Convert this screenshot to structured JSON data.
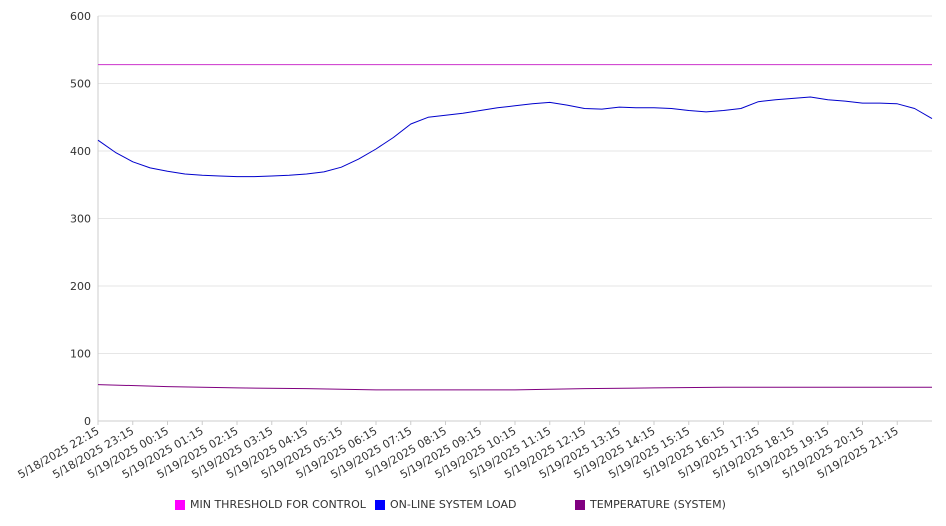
{
  "chart_data": {
    "type": "line",
    "ylim": [
      0,
      600
    ],
    "y_ticks": [
      "0",
      "100",
      "200",
      "300",
      "400",
      "500",
      "600"
    ],
    "x_tick_labels": [
      "5/18/2025 22:15",
      "5/18/2025 23:15",
      "5/19/2025 00:15",
      "5/19/2025 01:15",
      "5/19/2025 02:15",
      "5/19/2025 03:15",
      "5/19/2025 04:15",
      "5/19/2025 05:15",
      "5/19/2025 06:15",
      "5/19/2025 07:15",
      "5/19/2025 08:15",
      "5/19/2025 09:15",
      "5/19/2025 10:15",
      "5/19/2025 11:15",
      "5/19/2025 12:15",
      "5/19/2025 13:15",
      "5/19/2025 14:15",
      "5/19/2025 15:15",
      "5/19/2025 16:15",
      "5/19/2025 17:15",
      "5/19/2025 18:15",
      "5/19/2025 19:15",
      "5/19/2025 20:15",
      "5/19/2025 21:15"
    ],
    "x_start": "5/18/2025 22:15",
    "x_end": "5/19/2025 22:15",
    "grid": true,
    "legend_position": "bottom",
    "series": [
      {
        "name": "MIN THRESHOLD FOR CONTROL",
        "color": "#cc33cc",
        "x": [
          "5/18/2025 22:15",
          "5/19/2025 22:15"
        ],
        "values": [
          528,
          528
        ]
      },
      {
        "name": "ON-LINE SYSTEM LOAD",
        "color": "#0000cc",
        "x": [
          "5/18/2025 22:15",
          "5/18/2025 22:45",
          "5/18/2025 23:15",
          "5/18/2025 23:45",
          "5/19/2025 00:15",
          "5/19/2025 00:45",
          "5/19/2025 01:15",
          "5/19/2025 01:45",
          "5/19/2025 02:15",
          "5/19/2025 02:45",
          "5/19/2025 03:15",
          "5/19/2025 03:45",
          "5/19/2025 04:15",
          "5/19/2025 04:45",
          "5/19/2025 05:15",
          "5/19/2025 05:45",
          "5/19/2025 06:15",
          "5/19/2025 06:45",
          "5/19/2025 07:15",
          "5/19/2025 07:45",
          "5/19/2025 08:15",
          "5/19/2025 08:45",
          "5/19/2025 09:15",
          "5/19/2025 09:45",
          "5/19/2025 10:15",
          "5/19/2025 10:45",
          "5/19/2025 11:15",
          "5/19/2025 11:45",
          "5/19/2025 12:15",
          "5/19/2025 12:45",
          "5/19/2025 13:15",
          "5/19/2025 13:45",
          "5/19/2025 14:15",
          "5/19/2025 14:45",
          "5/19/2025 15:15",
          "5/19/2025 15:45",
          "5/19/2025 16:15",
          "5/19/2025 16:45",
          "5/19/2025 17:15",
          "5/19/2025 17:45",
          "5/19/2025 18:15",
          "5/19/2025 18:45",
          "5/19/2025 19:15",
          "5/19/2025 19:45",
          "5/19/2025 20:15",
          "5/19/2025 20:45",
          "5/19/2025 21:15",
          "5/19/2025 21:45",
          "5/19/2025 22:15"
        ],
        "values": [
          416,
          398,
          384,
          375,
          370,
          366,
          364,
          363,
          362,
          362,
          363,
          364,
          366,
          369,
          376,
          388,
          403,
          420,
          440,
          450,
          453,
          456,
          460,
          464,
          467,
          470,
          472,
          468,
          463,
          462,
          465,
          464,
          464,
          463,
          460,
          458,
          460,
          463,
          473,
          476,
          478,
          480,
          476,
          474,
          471,
          471,
          470,
          463,
          448
        ]
      },
      {
        "name": "TEMPERATURE (SYSTEM)",
        "color": "#800080",
        "x": [
          "5/18/2025 22:15",
          "5/19/2025 00:15",
          "5/19/2025 02:15",
          "5/19/2025 04:15",
          "5/19/2025 06:15",
          "5/19/2025 08:15",
          "5/19/2025 10:15",
          "5/19/2025 12:15",
          "5/19/2025 14:15",
          "5/19/2025 16:15",
          "5/19/2025 18:15",
          "5/19/2025 20:15",
          "5/19/2025 22:15"
        ],
        "values": [
          54,
          51,
          49,
          48,
          46,
          46,
          46,
          48,
          49,
          50,
          50,
          50,
          50
        ]
      }
    ]
  }
}
